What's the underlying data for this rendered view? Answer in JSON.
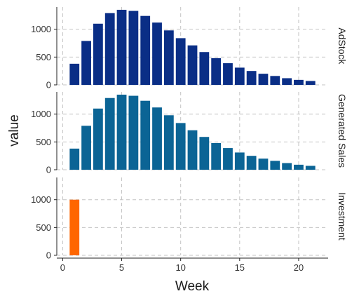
{
  "chart_data": {
    "type": "bar",
    "xlabel": "Week",
    "ylabel": "value",
    "x_ticks": [
      0,
      5,
      10,
      15,
      20
    ],
    "xlim": [
      -0.5,
      22.5
    ],
    "grid": "dashed",
    "panels": [
      {
        "label": "AdStock",
        "color": "#0a2e86",
        "ylim": [
          0,
          1400
        ],
        "y_ticks": [
          0,
          500,
          1000
        ],
        "x": [
          1,
          2,
          3,
          4,
          5,
          6,
          7,
          8,
          9,
          10,
          11,
          12,
          13,
          14,
          15,
          16,
          17,
          18,
          19,
          20,
          21
        ],
        "values": [
          380,
          790,
          1100,
          1290,
          1350,
          1330,
          1240,
          1120,
          980,
          840,
          710,
          590,
          480,
          390,
          310,
          250,
          200,
          160,
          120,
          90,
          70
        ]
      },
      {
        "label": "Generated Sales",
        "color": "#0b6495",
        "ylim": [
          0,
          1400
        ],
        "y_ticks": [
          0,
          500,
          1000
        ],
        "x": [
          1,
          2,
          3,
          4,
          5,
          6,
          7,
          8,
          9,
          10,
          11,
          12,
          13,
          14,
          15,
          16,
          17,
          18,
          19,
          20,
          21
        ],
        "values": [
          380,
          790,
          1100,
          1290,
          1350,
          1330,
          1240,
          1120,
          980,
          840,
          710,
          590,
          480,
          390,
          310,
          250,
          200,
          160,
          120,
          90,
          70
        ]
      },
      {
        "label": "Investment",
        "color": "#ff6600",
        "ylim": [
          0,
          1400
        ],
        "y_ticks": [
          0,
          500,
          1000
        ],
        "x": [
          1
        ],
        "values": [
          1000
        ]
      }
    ]
  }
}
